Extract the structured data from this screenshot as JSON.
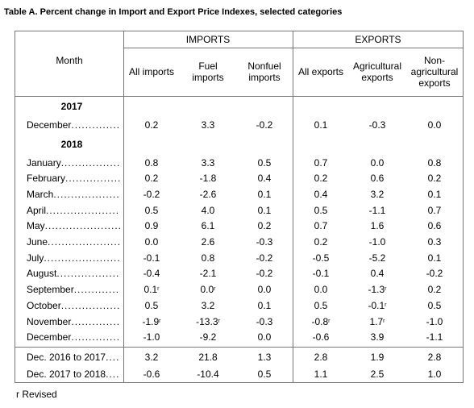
{
  "header": {
    "title": "Table A. Percent change in Import and Export Price Indexes, selected categories"
  },
  "table": {
    "month_label": "Month",
    "groups": [
      "IMPORTS",
      "EXPORTS"
    ],
    "columns": [
      "All imports",
      "Fuel imports",
      "Nonfuel imports",
      "All exports",
      "Agricultural exports",
      "Non-agricultural exports"
    ],
    "sections": [
      {
        "year": "2017",
        "rows": [
          {
            "label": "December",
            "cells": [
              "0.2",
              "3.3",
              "-0.2",
              "0.1",
              "-0.3",
              "0.0"
            ]
          }
        ]
      },
      {
        "year": "2018",
        "rows": [
          {
            "label": "January",
            "cells": [
              "0.8",
              "3.3",
              "0.5",
              "0.7",
              "0.0",
              "0.8"
            ]
          },
          {
            "label": "February",
            "cells": [
              "0.2",
              "-1.8",
              "0.4",
              "0.2",
              "0.6",
              "0.2"
            ]
          },
          {
            "label": "March",
            "cells": [
              "-0.2",
              "-2.6",
              "0.1",
              "0.4",
              "3.2",
              "0.1"
            ]
          },
          {
            "label": "April",
            "cells": [
              "0.5",
              "4.0",
              "0.1",
              "0.5",
              "-1.1",
              "0.7"
            ]
          },
          {
            "label": "May",
            "cells": [
              "0.9",
              "6.1",
              "0.2",
              "0.7",
              "1.6",
              "0.6"
            ]
          },
          {
            "label": "June",
            "cells": [
              "0.0",
              "2.6",
              "-0.3",
              "0.2",
              "-1.0",
              "0.3"
            ]
          },
          {
            "label": "July",
            "cells": [
              "-0.1",
              "0.8",
              "-0.2",
              "-0.5",
              "-5.2",
              "0.1"
            ]
          },
          {
            "label": "August",
            "cells": [
              "-0.4",
              "-2.1",
              "-0.2",
              "-0.1",
              "0.4",
              "-0.2"
            ]
          },
          {
            "label": "September",
            "cells": [
              {
                "text": "0.1",
                "mark": "r"
              },
              {
                "text": "0.0",
                "mark": "r"
              },
              "0.0",
              "0.0",
              {
                "text": "-1.3",
                "mark": "r"
              },
              "0.2"
            ]
          },
          {
            "label": "October",
            "cells": [
              "0.5",
              "3.2",
              "0.1",
              "0.5",
              {
                "text": "-0.1",
                "mark": "r"
              },
              "0.5"
            ]
          },
          {
            "label": "November",
            "cells": [
              {
                "text": "-1.9",
                "mark": "r"
              },
              {
                "text": "-13.3",
                "mark": "r"
              },
              "-0.3",
              {
                "text": "-0.8",
                "mark": "r"
              },
              {
                "text": "1.7",
                "mark": "r"
              },
              "-1.0"
            ]
          },
          {
            "label": "December",
            "cells": [
              "-1.0",
              "-9.2",
              "0.0",
              "-0.6",
              "3.9",
              "-1.1"
            ]
          }
        ]
      }
    ],
    "summary": [
      {
        "label": "Dec. 2016 to 2017",
        "cells": [
          "3.2",
          "21.8",
          "1.3",
          "2.8",
          "1.9",
          "2.8"
        ]
      },
      {
        "label": "Dec. 2017 to 2018",
        "cells": [
          "-0.6",
          "-10.4",
          "0.5",
          "1.1",
          "2.5",
          "1.0"
        ]
      }
    ]
  },
  "footnote": {
    "mark": "r",
    "text": "Revised"
  }
}
